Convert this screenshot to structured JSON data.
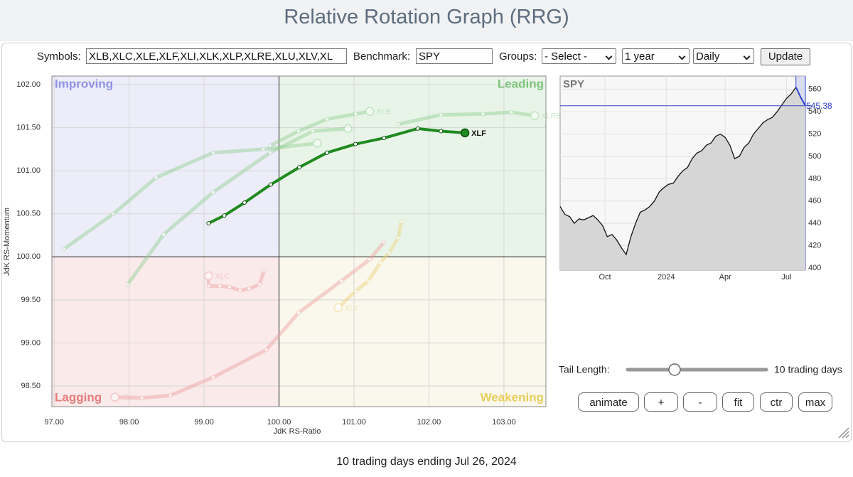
{
  "header": {
    "title": "Relative Rotation Graph (RRG)"
  },
  "controls": {
    "symbols_label": "Symbols:",
    "symbols": "XLB,XLC,XLE,XLF,XLI,XLK,XLP,XLRE,XLU,XLV,XL",
    "benchmark_label": "Benchmark:",
    "benchmark": "SPY",
    "groups_label": "Groups:",
    "groups": "- Select -",
    "period": "1 year",
    "frequency": "Daily",
    "update": "Update"
  },
  "chart_data": [
    {
      "type": "rrg",
      "xlabel": "JdK RS-Ratio",
      "ylabel": "JdK RS-Momentum",
      "xlim": [
        96.97,
        103.56
      ],
      "ylim": [
        98.26,
        102.1
      ],
      "center": 100,
      "grid": true,
      "xticks": [
        {
          "value": 97,
          "label": "97.00"
        },
        {
          "value": 98,
          "label": "98.00"
        },
        {
          "value": 99,
          "label": "99.00"
        },
        {
          "value": 100,
          "label": "100.00"
        },
        {
          "value": 101,
          "label": "101.00"
        },
        {
          "value": 102,
          "label": "102.00"
        },
        {
          "value": 103,
          "label": "103.00"
        }
      ],
      "yticks": [
        {
          "value": 98.5,
          "label": "98.50"
        },
        {
          "value": 99,
          "label": "99.00"
        },
        {
          "value": 99.5,
          "label": "99.50"
        },
        {
          "value": 100,
          "label": "100.00"
        },
        {
          "value": 100.5,
          "label": "100.50"
        },
        {
          "value": 101,
          "label": "101.00"
        },
        {
          "value": 101.5,
          "label": "101.50"
        },
        {
          "value": 102,
          "label": "102.00"
        }
      ],
      "quadrants": [
        {
          "label": "Improving",
          "color": "#8f93e6"
        },
        {
          "label": "Leading",
          "color": "#7cc47c"
        },
        {
          "label": "Lagging",
          "color": "#e67c7c"
        },
        {
          "label": "Weakening",
          "color": "#e8cf5c"
        }
      ],
      "series": [
        {
          "color": "#8fcf8f",
          "x": [
            97.13,
            97.79,
            98.36,
            99.12,
            99.79,
            100.51
          ],
          "y": [
            100.09,
            100.5,
            100.92,
            101.21,
            101.25,
            101.32
          ]
        },
        {
          "color": "#8fcf8f",
          "x": [
            97.98,
            98.46,
            99.12,
            99.88,
            100.45,
            100.92
          ],
          "y": [
            99.68,
            100.26,
            100.75,
            101.21,
            101.46,
            101.49
          ]
        },
        {
          "name": "XLB",
          "color": "#8fcf8f",
          "x": [
            99.88,
            100.26,
            100.64,
            101.02,
            101.21
          ],
          "y": [
            101.29,
            101.46,
            101.6,
            101.66,
            101.69
          ]
        },
        {
          "name": "XLRE",
          "color": "#8fcf8f",
          "x": [
            101.59,
            102.16,
            102.72,
            103.1,
            103.41
          ],
          "y": [
            101.54,
            101.65,
            101.66,
            101.68,
            101.64
          ]
        },
        {
          "name": "XLC",
          "color": "#f0a0a0",
          "x": [
            99.8,
            99.74,
            99.6,
            99.48,
            99.34,
            99.21,
            99.06,
            99.06
          ],
          "y": [
            99.84,
            99.68,
            99.63,
            99.61,
            99.65,
            99.66,
            99.66,
            99.78
          ]
        },
        {
          "name": "XLY",
          "color": "#ecd27a",
          "x": [
            101.63,
            101.59,
            101.47,
            101.35,
            101.19,
            101.02,
            100.79
          ],
          "y": [
            100.41,
            100.22,
            100.05,
            99.93,
            99.72,
            99.6,
            99.41
          ]
        },
        {
          "name": "XLK",
          "color": "#f0a0a0",
          "x": [
            101.4,
            101.21,
            100.83,
            100.26,
            99.83,
            99.12,
            98.55,
            98.17,
            97.81
          ],
          "y": [
            100.17,
            99.97,
            99.72,
            99.35,
            98.92,
            98.6,
            98.39,
            98.36,
            98.37
          ]
        },
        {
          "name": "XLF",
          "color": "#1f8a1f",
          "highlight": true,
          "x": [
            99.06,
            99.27,
            99.54,
            99.89,
            100.27,
            100.64,
            101.02,
            101.4,
            101.85,
            102.16,
            102.48
          ],
          "y": [
            100.39,
            100.48,
            100.63,
            100.84,
            101.04,
            101.21,
            101.31,
            101.38,
            101.49,
            101.46,
            101.44
          ]
        }
      ]
    },
    {
      "type": "line",
      "title": "SPY",
      "color": "#111111",
      "xlim": [
        0,
        52
      ],
      "ylim": [
        398,
        572
      ],
      "xticks": [
        {
          "value": 9.5,
          "label": "Oct"
        },
        {
          "value": 22.5,
          "label": "2024"
        },
        {
          "value": 35,
          "label": "Apr"
        },
        {
          "value": 48,
          "label": "Jul"
        }
      ],
      "yticks": [
        400,
        420,
        440,
        460,
        480,
        500,
        520,
        540,
        560
      ],
      "grid": true,
      "values": [
        455,
        448,
        446,
        440,
        444,
        443,
        445,
        447,
        443,
        438,
        428,
        430,
        425,
        418,
        412,
        428,
        440,
        450,
        452,
        455,
        460,
        468,
        472,
        475,
        476,
        482,
        487,
        490,
        498,
        503,
        505,
        510,
        512,
        518,
        520,
        517,
        510,
        498,
        500,
        508,
        512,
        520,
        525,
        530,
        533,
        535,
        540,
        546,
        552,
        556,
        562,
        553,
        545.38
      ]
    }
  ],
  "tail": {
    "label": "Tail Length:",
    "value": "10 trading days"
  },
  "buttons": [
    "animate",
    "+",
    "-",
    "fit",
    "ctr",
    "max"
  ],
  "footer": "10 trading days ending Jul 26, 2024"
}
